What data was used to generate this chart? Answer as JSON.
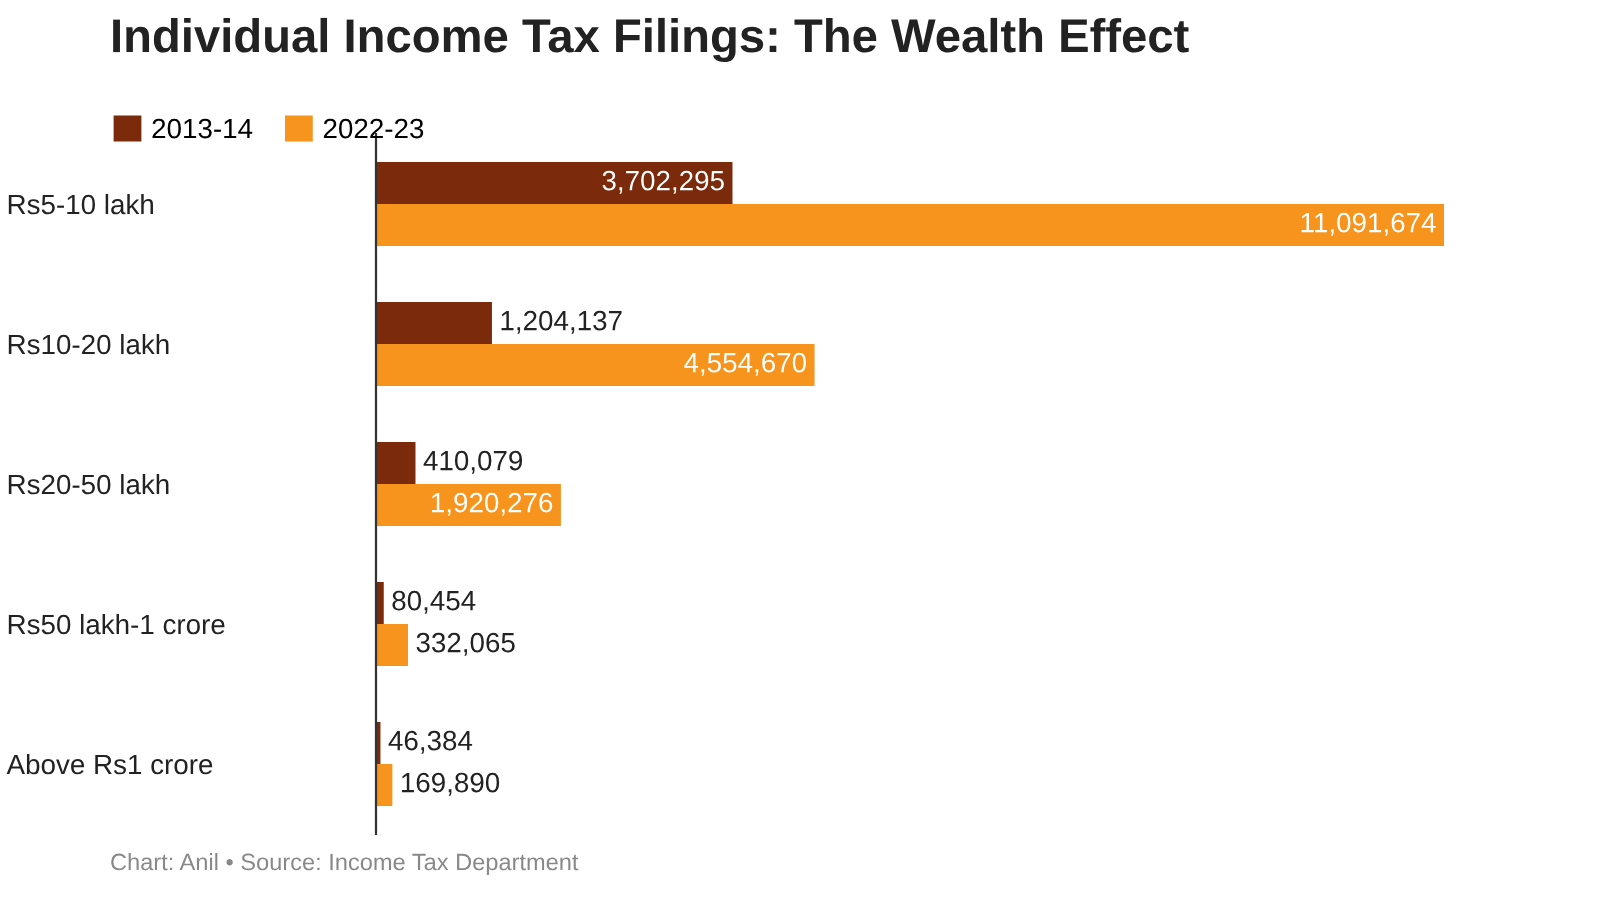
{
  "chart_data": {
    "type": "bar",
    "orientation": "horizontal",
    "title": "Individual Income Tax Filings: The Wealth Effect",
    "categories": [
      "Rs5-10 lakh",
      "Rs10-20 lakh",
      "Rs20-50 lakh",
      "Rs50 lakh-1 crore",
      "Above Rs1 crore"
    ],
    "series": [
      {
        "name": "2013-14",
        "color": "#7b2a0c",
        "values": [
          3702295,
          1204137,
          410079,
          80454,
          46384
        ],
        "value_labels": [
          "3,702,295",
          "1,204,137",
          "410,079",
          "80,454",
          "46,384"
        ]
      },
      {
        "name": "2022-23",
        "color": "#f7941d",
        "values": [
          11091674,
          4554670,
          1920276,
          332065,
          169890
        ],
        "value_labels": [
          "11,091,674",
          "4,554,670",
          "1,920,276",
          "332,065",
          "169,890"
        ]
      }
    ],
    "legend": "top left",
    "grid": false,
    "annotations": [
      "Chart: Anil • Source: Income Tax Department"
    ]
  }
}
